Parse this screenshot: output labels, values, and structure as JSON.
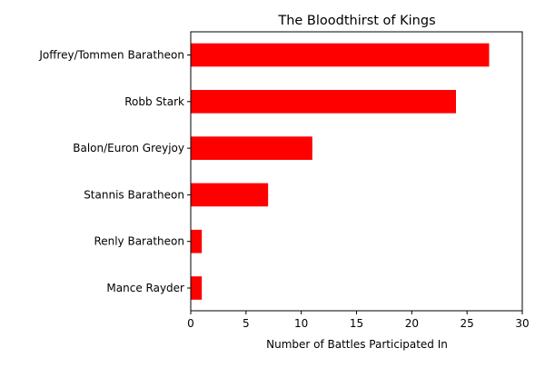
{
  "chart_data": {
    "type": "bar",
    "orientation": "horizontal",
    "title": "The Bloodthirst of Kings",
    "xlabel": "Number of Battles Participated In",
    "ylabel": "",
    "categories": [
      "Joffrey/Tommen Baratheon",
      "Robb Stark",
      "Balon/Euron Greyjoy",
      "Stannis Baratheon",
      "Renly Baratheon",
      "Mance Rayder"
    ],
    "values": [
      27,
      24,
      11,
      7,
      1,
      1
    ],
    "xlim": [
      0,
      30
    ],
    "xticks": [
      0,
      5,
      10,
      15,
      20,
      25,
      30
    ],
    "bar_color": "#ff0000",
    "grid": false,
    "legend": "none"
  }
}
